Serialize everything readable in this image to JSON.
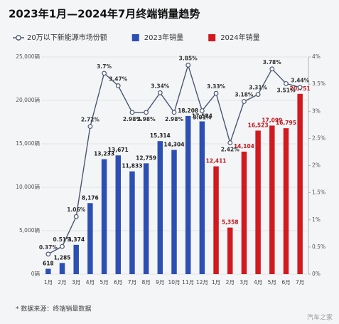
{
  "chart_data": {
    "type": "bar",
    "title": "2023年1月—2024年7月终端销量趋势",
    "categories": [
      "1月",
      "2月",
      "3月",
      "4月",
      "5月",
      "6月",
      "7月",
      "8月",
      "9月",
      "10月",
      "11月",
      "12月",
      "1月",
      "2月",
      "3月",
      "4月",
      "5月",
      "6月",
      "7月"
    ],
    "series": [
      {
        "name": "20万以下新能源市场份额",
        "color": "#4a5773",
        "axis": "y2",
        "kind": "line",
        "values": [
          0.37,
          0.51,
          1.06,
          2.72,
          3.7,
          3.47,
          2.98,
          2.98,
          3.34,
          2.98,
          3.85,
          3.01,
          3.33,
          2.42,
          3.18,
          3.31,
          3.78,
          3.51,
          3.44
        ],
        "value_labels": [
          "0.37%",
          "0.51%",
          "1.06%",
          "2.72%",
          "3.7%",
          "3.47%",
          "2.98%",
          "2.98%",
          "3.34%",
          "2.98%",
          "3.85%",
          "3.01%",
          "3.33%",
          "2.42%",
          "3.18%",
          "3.31%",
          "3.78%",
          "3.51%",
          "3.44%"
        ]
      },
      {
        "name": "2023年销量",
        "color": "#2c4fb3",
        "kind": "bar",
        "values": [
          618,
          1285,
          3374,
          8176,
          13233,
          13671,
          11833,
          12759,
          15314,
          14304,
          18208,
          17584,
          null,
          null,
          null,
          null,
          null,
          null,
          null
        ],
        "value_labels": [
          "618",
          "1,285",
          "3,374",
          "8,176",
          "13,233",
          "13,671",
          "11,833",
          "12,759",
          "15,314",
          "14,304",
          "18,208",
          "17,584",
          null,
          null,
          null,
          null,
          null,
          null,
          null
        ]
      },
      {
        "name": "2024年销量",
        "color": "#d2191f",
        "kind": "bar",
        "values": [
          null,
          null,
          null,
          null,
          null,
          null,
          null,
          null,
          null,
          null,
          null,
          null,
          12411,
          5358,
          14104,
          16523,
          17099,
          16795,
          20751
        ],
        "value_labels": [
          null,
          null,
          null,
          null,
          null,
          null,
          null,
          null,
          null,
          null,
          null,
          null,
          "12,411",
          "5,358",
          "14,104",
          "16,523",
          "17,099",
          "16,795",
          "20,751"
        ]
      }
    ],
    "ylim": [
      0,
      25000
    ],
    "yticks": [
      {
        "value": 0,
        "label": "0辆"
      },
      {
        "value": 5000,
        "label": "5,000辆"
      },
      {
        "value": 10000,
        "label": "10,000辆"
      },
      {
        "value": 15000,
        "label": "15,000辆"
      },
      {
        "value": 20000,
        "label": "20,000辆"
      },
      {
        "value": 25000,
        "label": "25,000辆"
      }
    ],
    "y2lim": [
      0,
      4
    ],
    "y2ticks": [
      {
        "value": 0,
        "label": "0%"
      },
      {
        "value": 0.5,
        "label": "0.5%"
      },
      {
        "value": 1,
        "label": "1%"
      },
      {
        "value": 1.5,
        "label": "1.5%"
      },
      {
        "value": 2,
        "label": "2%"
      },
      {
        "value": 2.5,
        "label": "2.5%"
      },
      {
        "value": 3,
        "label": "3%"
      },
      {
        "value": 3.5,
        "label": "3.5%"
      },
      {
        "value": 4,
        "label": "4%"
      }
    ],
    "grid": true,
    "legend": "top",
    "note": "* 数据来源：终端销量数据",
    "watermark": "汽车之家"
  }
}
